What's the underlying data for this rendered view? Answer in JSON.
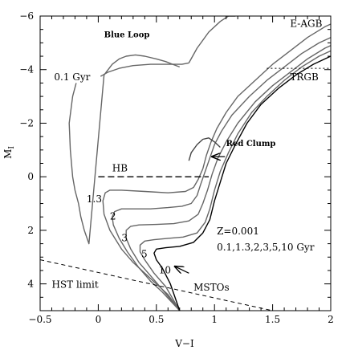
{
  "chart_data": {
    "type": "line",
    "xlabel": "V−I",
    "ylabel": "M",
    "ylabel_sub": "I",
    "xlim": [
      -0.5,
      2
    ],
    "ylim": [
      5,
      -6
    ],
    "y_inverted": true,
    "grid": false,
    "legend": "none",
    "x_ticks": [
      {
        "value": -0.5,
        "label": "−0.5"
      },
      {
        "value": 0,
        "label": "0"
      },
      {
        "value": 0.5,
        "label": "0.5"
      },
      {
        "value": 1,
        "label": "1"
      },
      {
        "value": 1.5,
        "label": "1.5"
      },
      {
        "value": 2,
        "label": "2"
      }
    ],
    "y_ticks": [
      {
        "value": -6,
        "label": "−6"
      },
      {
        "value": -4,
        "label": "−4"
      },
      {
        "value": -2,
        "label": "−2"
      },
      {
        "value": 0,
        "label": "0"
      },
      {
        "value": 2,
        "label": "2"
      },
      {
        "value": 4,
        "label": "4"
      }
    ],
    "series": [
      {
        "id": "iso-0.1",
        "color": "#666666",
        "x": [
          -0.19,
          -0.22,
          -0.25,
          -0.24,
          -0.22,
          -0.2,
          -0.17,
          -0.15,
          -0.12,
          -0.08,
          0.05,
          0.12,
          0.18,
          0.24,
          0.32,
          0.4,
          0.5,
          0.58,
          0.64,
          0.7
        ],
        "y": [
          -3.5,
          -3.0,
          -2.0,
          -1.0,
          0.0,
          0.5,
          1.0,
          1.5,
          2.0,
          2.5,
          -3.8,
          -4.2,
          -4.4,
          -4.5,
          -4.55,
          -4.5,
          -4.4,
          -4.3,
          -4.2,
          -4.1
        ]
      },
      {
        "id": "iso-1.3",
        "color": "#666666",
        "x": [
          0.7,
          0.6,
          0.5,
          0.4,
          0.3,
          0.2,
          0.1,
          0.05,
          0.04,
          0.06,
          0.1,
          0.2,
          0.4,
          0.6,
          0.75,
          0.82,
          0.86,
          0.9,
          0.93,
          0.97,
          1.02,
          1.1,
          1.2,
          1.35,
          1.5,
          1.65,
          1.8,
          1.95,
          2.0
        ],
        "y": [
          5.0,
          4.4,
          4.0,
          3.6,
          3.2,
          2.7,
          2.0,
          1.4,
          0.9,
          0.6,
          0.5,
          0.5,
          0.55,
          0.6,
          0.55,
          0.4,
          0.1,
          -0.3,
          -0.8,
          -1.3,
          -1.8,
          -2.4,
          -3.0,
          -3.6,
          -4.2,
          -4.7,
          -5.2,
          -5.6,
          -5.7
        ]
      },
      {
        "id": "iso-2",
        "color": "#666666",
        "x": [
          0.7,
          0.55,
          0.45,
          0.35,
          0.25,
          0.18,
          0.13,
          0.12,
          0.14,
          0.2,
          0.3,
          0.45,
          0.6,
          0.72,
          0.8,
          0.85,
          0.88,
          0.92,
          0.96,
          1.0,
          1.06,
          1.15,
          1.3,
          1.45,
          1.6,
          1.75,
          1.9,
          2.0
        ],
        "y": [
          5.0,
          4.3,
          3.9,
          3.4,
          2.8,
          2.3,
          1.8,
          1.5,
          1.3,
          1.2,
          1.2,
          1.2,
          1.15,
          1.1,
          1.0,
          0.7,
          0.3,
          -0.2,
          -0.7,
          -1.2,
          -1.7,
          -2.3,
          -3.0,
          -3.6,
          -4.1,
          -4.6,
          -5.0,
          -5.2
        ]
      },
      {
        "id": "iso-3",
        "color": "#666666",
        "x": [
          0.7,
          0.55,
          0.45,
          0.35,
          0.28,
          0.24,
          0.24,
          0.28,
          0.35,
          0.5,
          0.65,
          0.78,
          0.86,
          0.9,
          0.94,
          0.98,
          1.03,
          1.1,
          1.2,
          1.35,
          1.5,
          1.65,
          1.8,
          1.95,
          2.0
        ],
        "y": [
          5.0,
          4.2,
          3.7,
          3.2,
          2.7,
          2.3,
          2.0,
          1.85,
          1.8,
          1.78,
          1.75,
          1.65,
          1.4,
          1.0,
          0.5,
          -0.1,
          -0.7,
          -1.3,
          -2.0,
          -2.8,
          -3.4,
          -3.9,
          -4.4,
          -4.8,
          -4.9
        ]
      },
      {
        "id": "iso-5",
        "color": "#666666",
        "x": [
          0.7,
          0.58,
          0.48,
          0.4,
          0.36,
          0.36,
          0.4,
          0.48,
          0.6,
          0.73,
          0.85,
          0.92,
          0.96,
          1.0,
          1.05,
          1.12,
          1.2,
          1.32,
          1.45,
          1.6,
          1.75,
          1.9,
          2.0
        ],
        "y": [
          5.0,
          4.1,
          3.6,
          3.1,
          2.8,
          2.55,
          2.4,
          2.35,
          2.3,
          2.25,
          2.1,
          1.7,
          1.2,
          0.5,
          -0.2,
          -0.9,
          -1.6,
          -2.4,
          -3.0,
          -3.6,
          -4.1,
          -4.5,
          -4.7
        ]
      },
      {
        "id": "iso-10",
        "color": "#000000",
        "x": [
          0.7,
          0.62,
          0.55,
          0.5,
          0.48,
          0.5,
          0.58,
          0.7,
          0.82,
          0.9,
          0.96,
          1.0,
          1.05,
          1.1,
          1.18,
          1.28,
          1.4,
          1.55,
          1.7,
          1.85,
          2.0
        ],
        "y": [
          5.0,
          4.0,
          3.4,
          3.1,
          2.85,
          2.7,
          2.65,
          2.6,
          2.45,
          2.1,
          1.6,
          0.9,
          0.2,
          -0.5,
          -1.2,
          -2.0,
          -2.7,
          -3.3,
          -3.8,
          -4.2,
          -4.5
        ]
      },
      {
        "id": "blue-loop-lower",
        "color": "#666666",
        "x": [
          0.02,
          0.08,
          0.18,
          0.3,
          0.45,
          0.6,
          0.72,
          0.78
        ],
        "y": [
          -3.75,
          -3.9,
          -4.05,
          -4.15,
          -4.2,
          -4.2,
          -4.2,
          -4.25
        ]
      },
      {
        "id": "agb-upper",
        "color": "#666666",
        "x": [
          0.78,
          0.85,
          0.95,
          1.05,
          1.12,
          1.18
        ],
        "y": [
          -4.25,
          -4.8,
          -5.4,
          -5.8,
          -6.0,
          -6.0
        ]
      },
      {
        "id": "red-clump",
        "color": "#444444",
        "x": [
          0.78,
          0.8,
          0.85,
          0.9,
          0.95,
          1.0,
          1.05
        ],
        "y": [
          -0.6,
          -0.9,
          -1.2,
          -1.4,
          -1.45,
          -1.3,
          -1.1
        ]
      }
    ],
    "dashed_lines": [
      {
        "id": "hb",
        "x": [
          0.0,
          0.95
        ],
        "y": [
          0.0,
          0.0
        ]
      },
      {
        "id": "hst-limit",
        "x": [
          -0.5,
          1.5
        ],
        "y": [
          3.1,
          5.0
        ]
      },
      {
        "id": "trgb",
        "x": [
          1.45,
          2.0
        ],
        "y": [
          -4.05,
          -4.05
        ]
      }
    ],
    "annotations": [
      {
        "id": "blue-loop",
        "text": "Blue Loop",
        "x": 0.05,
        "y": -5.2,
        "size": 10,
        "weight": "bold"
      },
      {
        "id": "age-0.1",
        "text": "0.1 Gyr",
        "x": -0.38,
        "y": -3.6,
        "size": 12,
        "weight": "normal"
      },
      {
        "id": "e-agb",
        "text": "E-AGB",
        "x": 1.65,
        "y": -5.6,
        "size": 12,
        "weight": "normal"
      },
      {
        "id": "trgb-label",
        "text": "TRGB",
        "x": 1.65,
        "y": -3.6,
        "size": 12,
        "weight": "normal"
      },
      {
        "id": "red-clump-label",
        "text": "Red Clump",
        "x": 1.1,
        "y": -1.15,
        "size": 10,
        "weight": "bold"
      },
      {
        "id": "hb-label",
        "text": "HB",
        "x": 0.12,
        "y": -0.2,
        "size": 12,
        "weight": "normal"
      },
      {
        "id": "age-1.3",
        "text": "1.3",
        "x": -0.1,
        "y": 0.95,
        "size": 12,
        "weight": "normal"
      },
      {
        "id": "age-2",
        "text": "2",
        "x": 0.1,
        "y": 1.6,
        "size": 12,
        "weight": "normal"
      },
      {
        "id": "age-3",
        "text": "3",
        "x": 0.2,
        "y": 2.4,
        "size": 12,
        "weight": "normal"
      },
      {
        "id": "age-5",
        "text": "5",
        "x": 0.37,
        "y": 3.0,
        "size": 12,
        "weight": "normal"
      },
      {
        "id": "age-10",
        "text": "10",
        "x": 0.52,
        "y": 3.6,
        "size": 12,
        "weight": "normal"
      },
      {
        "id": "z-label",
        "text": "Z=0.001",
        "x": 1.02,
        "y": 2.15,
        "size": 12,
        "weight": "normal"
      },
      {
        "id": "ages-label",
        "text": "0.1,1.3,2,3,5,10 Gyr",
        "x": 1.02,
        "y": 2.75,
        "size": 12,
        "weight": "normal"
      },
      {
        "id": "mstos",
        "text": "MSTOs",
        "x": 0.82,
        "y": 4.25,
        "size": 12,
        "weight": "normal"
      },
      {
        "id": "hst-limit-label",
        "text": "HST limit",
        "x": -0.4,
        "y": 4.15,
        "size": 12,
        "weight": "normal"
      }
    ],
    "arrows": [
      {
        "id": "red-clump-arrow",
        "x": [
          1.09,
          0.98
        ],
        "y": [
          -0.75,
          -0.75
        ]
      },
      {
        "id": "mstos-arrow",
        "x": [
          0.78,
          0.66
        ],
        "y": [
          3.6,
          3.35
        ]
      }
    ]
  }
}
